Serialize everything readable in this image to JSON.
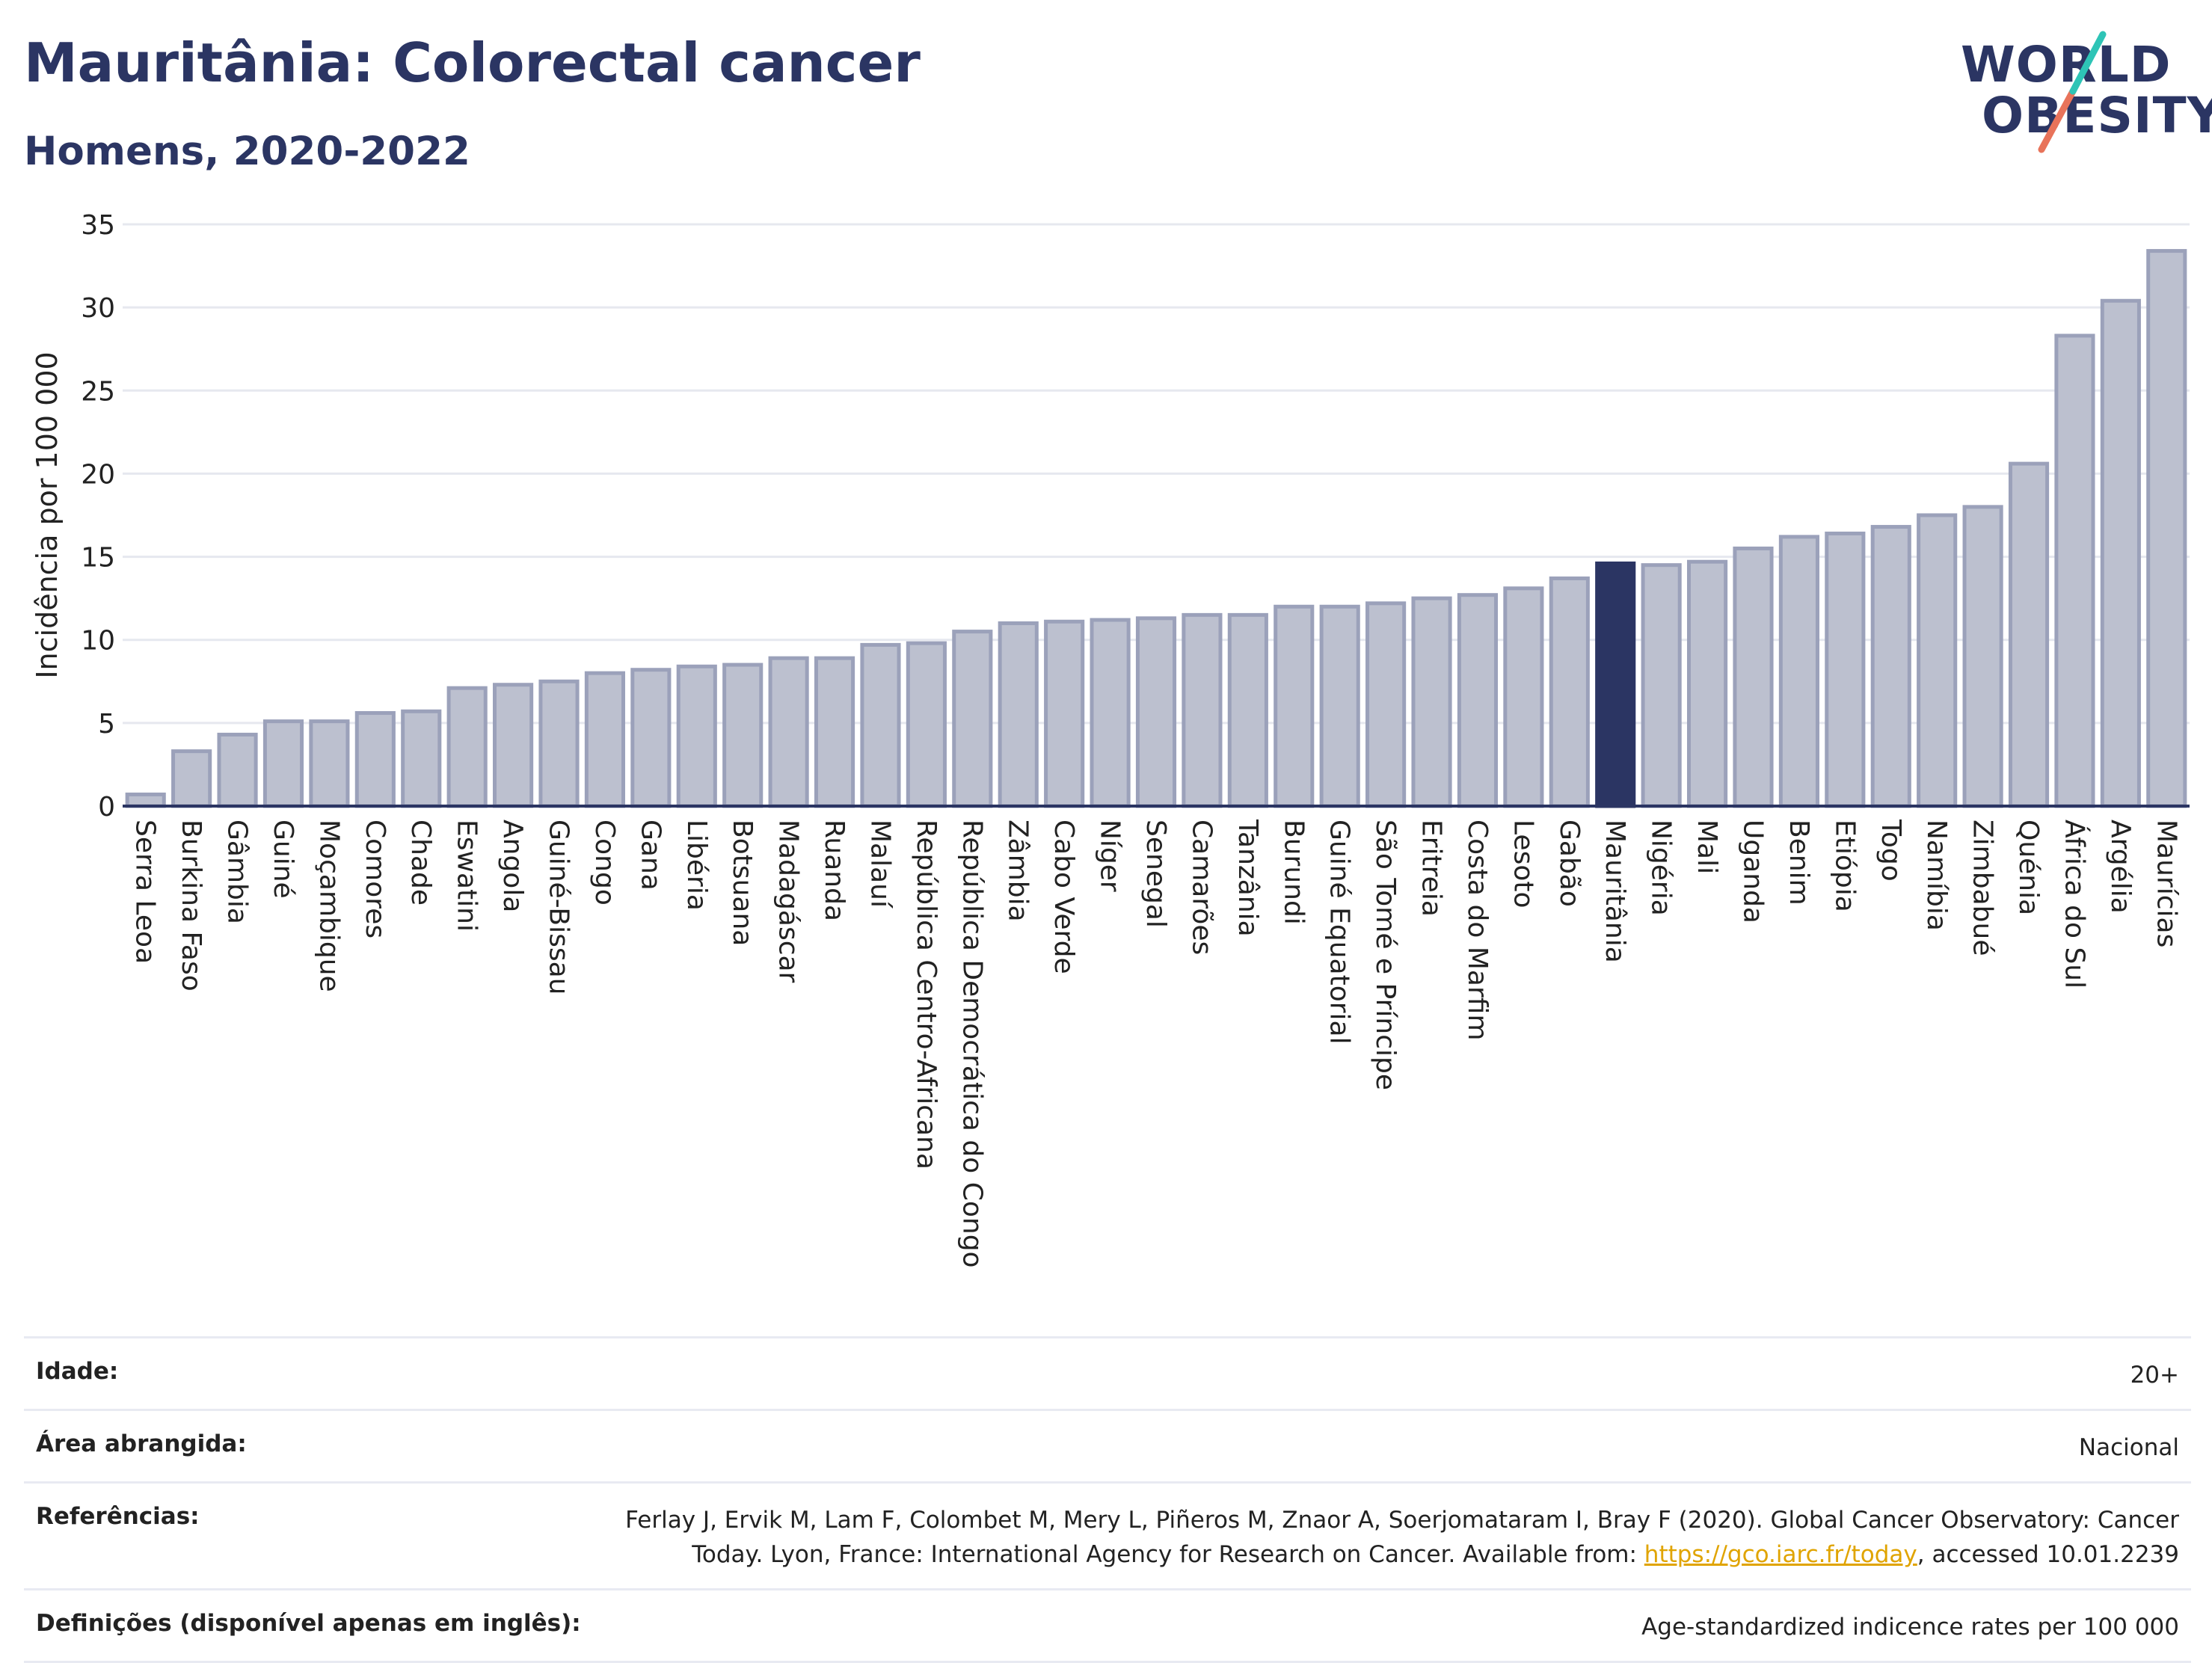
{
  "header": {
    "title": "Mauritânia: Colorectal cancer",
    "subtitle": "Homens, 2020-2022"
  },
  "logo": {
    "line1": "WORLD",
    "line2": "OBESITY"
  },
  "colors": {
    "bar_fill": "#bcc0cf",
    "bar_stroke": "#9ba1ba",
    "highlight": "#2b3563",
    "grid": "#e6e8ef",
    "text": "#2b3563",
    "logo_teal": "#2ec4b6",
    "logo_coral": "#e8735a",
    "link": "#e0a400"
  },
  "chart_data": {
    "type": "bar",
    "ylabel": "Incidência por 100 000",
    "xlabel": "",
    "ylim": [
      0,
      35
    ],
    "yticks": [
      0,
      5,
      10,
      15,
      20,
      25,
      30,
      35
    ],
    "grid": true,
    "highlight": "Mauritânia",
    "categories": [
      "Serra Leoa",
      "Burkina Faso",
      "Gâmbia",
      "Guiné",
      "Moçambique",
      "Comores",
      "Chade",
      "Eswatini",
      "Angola",
      "Guiné-Bissau",
      "Congo",
      "Gana",
      "Libéria",
      "Botsuana",
      "Madagáscar",
      "Ruanda",
      "Malauí",
      "República Centro-Africana",
      "República Democrática do Congo",
      "Zâmbia",
      "Cabo Verde",
      "Níger",
      "Senegal",
      "Camarões",
      "Tanzânia",
      "Burundi",
      "Guiné Equatorial",
      "São Tomé e Príncipe",
      "Eritreia",
      "Costa do Marfim",
      "Lesoto",
      "Gabão",
      "Mauritânia",
      "Nigéria",
      "Mali",
      "Uganda",
      "Benim",
      "Etiópia",
      "Togo",
      "Namíbia",
      "Zimbabué",
      "Quénia",
      "África do Sul",
      "Argélia",
      "Maurícias"
    ],
    "values": [
      0.7,
      3.3,
      4.3,
      5.1,
      5.1,
      5.6,
      5.7,
      7.1,
      7.3,
      7.5,
      8.0,
      8.2,
      8.4,
      8.5,
      8.9,
      8.9,
      9.7,
      9.8,
      10.5,
      11.0,
      11.1,
      11.2,
      11.3,
      11.5,
      11.5,
      12.0,
      12.0,
      12.2,
      12.5,
      12.7,
      13.1,
      13.7,
      14.6,
      14.5,
      14.7,
      15.5,
      16.2,
      16.4,
      16.8,
      17.5,
      18.0,
      20.6,
      28.3,
      30.4,
      33.4
    ]
  },
  "info": {
    "age_label": "Idade:",
    "age_value": "20+",
    "area_label": "Área abrangida:",
    "area_value": "Nacional",
    "ref_label": "Referências:",
    "ref_text_1": "Ferlay J, Ervik M, Lam F, Colombet M, Mery L, Piñeros M, Znaor A, Soerjomataram I, Bray F (2020). Global Cancer Observatory: Cancer Today. Lyon, France: International Agency for Research on Cancer. Available from: ",
    "ref_link": "https://gco.iarc.fr/today",
    "ref_text_2": ", accessed 10.01.2239",
    "def_label": "Definições (disponível apenas em inglês):",
    "def_value": "Age-standardized indicence rates per 100 000"
  }
}
